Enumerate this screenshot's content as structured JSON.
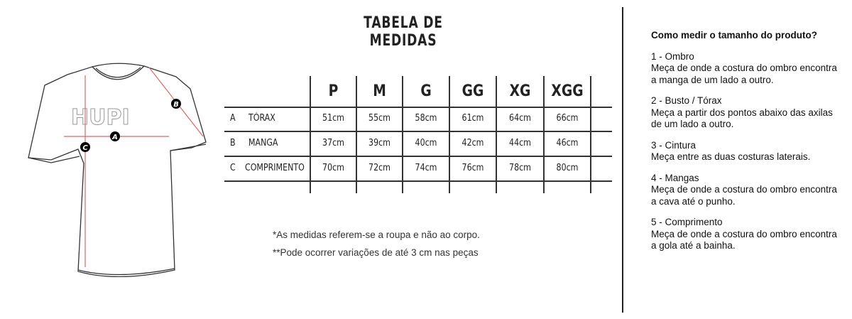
{
  "title": "TABELA DE MEDIDAS",
  "diagram": {
    "brand": "HUPI",
    "markers": [
      "A",
      "B",
      "C"
    ],
    "arrow_color": "#d9686a"
  },
  "table": {
    "sizes": [
      "P",
      "M",
      "G",
      "GG",
      "XG",
      "XGG"
    ],
    "rows": [
      {
        "code": "A",
        "name": "TÓRAX",
        "values": [
          "51cm",
          "55cm",
          "58cm",
          "61cm",
          "64cm",
          "66cm"
        ]
      },
      {
        "code": "B",
        "name": "MANGA",
        "values": [
          "37cm",
          "39cm",
          "40cm",
          "42cm",
          "44cm",
          "46cm"
        ]
      },
      {
        "code": "C",
        "name": "COMPRIMENTO",
        "values": [
          "70cm",
          "72cm",
          "74cm",
          "76cm",
          "78cm",
          "80cm"
        ]
      }
    ]
  },
  "notes": [
    "*As medidas referem-se a roupa e não ao corpo.",
    "**Pode ocorrer variações de até 3 cm nas peças"
  ],
  "guide": {
    "heading": "Como medir o tamanho do produto?",
    "sections": [
      {
        "title": "1 - Ombro",
        "text": "Meça de onde a costura do ombro encontra a manga de um lado a outro."
      },
      {
        "title": "2 - Busto / Tórax",
        "text": "Meça a partir dos pontos abaixo das axilas de um lado a outro."
      },
      {
        "title": "3 - Cintura",
        "text": "Meça entre as duas costuras laterais."
      },
      {
        "title": "4 - Mangas",
        "text": "Meça de onde a costura do ombro encontra a cava até o punho."
      },
      {
        "title": "5 - Comprimento",
        "text": "Meça de onde a costura do ombro encontra a gola até a bainha."
      }
    ]
  }
}
